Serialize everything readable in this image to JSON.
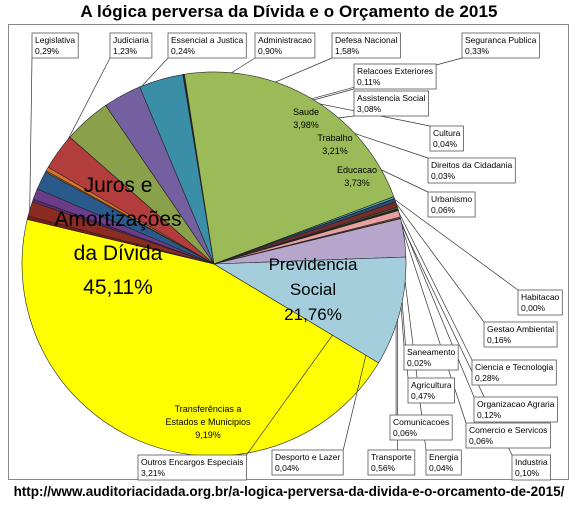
{
  "chart_data": {
    "type": "pie",
    "title": "A lógica perversa da Dívida e o Orçamento de 2015",
    "source": "http://www.auditoriacidada.org.br/a-logica-perversa-da-divida-e-o-orcamento-de-2015/",
    "slices": [
      {
        "name": "Juros e Amortizações da Dívida",
        "value": 45.11,
        "label": "45,11%",
        "color": "#ffff00"
      },
      {
        "name": "Legislativa",
        "value": 0.29,
        "label": "0,29%",
        "color": "#7f1a1a"
      },
      {
        "name": "Judiciaria",
        "value": 1.23,
        "label": "1,23%",
        "color": "#8b2b22"
      },
      {
        "name": "Essencial a Justica",
        "value": 0.24,
        "label": "0,24%",
        "color": "#5c2a6e"
      },
      {
        "name": "Administracao",
        "value": 0.9,
        "label": "0,90%",
        "color": "#6b3c8a"
      },
      {
        "name": "Defesa Nacional",
        "value": 1.58,
        "label": "1,58%",
        "color": "#2a5a8c"
      },
      {
        "name": "Relacoes Exteriores",
        "value": 0.11,
        "label": "0,11%",
        "color": "#c06a28"
      },
      {
        "name": "Seguranca Publica",
        "value": 0.33,
        "label": "0,33%",
        "color": "#d8722a"
      },
      {
        "name": "Assistencia Social",
        "value": 3.08,
        "label": "3,08%",
        "color": "#b33c3c"
      },
      {
        "name": "Saude",
        "value": 3.98,
        "label": "3,98%",
        "color": "#8aa04a"
      },
      {
        "name": "Trabalho",
        "value": 3.21,
        "label": "3,21%",
        "color": "#7460a0"
      },
      {
        "name": "Educacao",
        "value": 3.73,
        "label": "3,73%",
        "color": "#3a8ea8"
      },
      {
        "name": "Cultura",
        "value": 0.04,
        "label": "0,04%",
        "color": "#e08a40"
      },
      {
        "name": "Direitos da Cidadania",
        "value": 0.03,
        "label": "0,03%",
        "color": "#4a6fa0"
      },
      {
        "name": "Urbanismo",
        "value": 0.06,
        "label": "0,06%",
        "color": "#a04040"
      },
      {
        "name": "Previdencia Social",
        "value": 21.76,
        "label": "21,76%",
        "color": "#9bbb59"
      },
      {
        "name": "Habitacao",
        "value": 0.0,
        "label": "0,00%",
        "color": "#8064a2"
      },
      {
        "name": "Gestao Ambiental",
        "value": 0.16,
        "label": "0,16%",
        "color": "#4bacc6"
      },
      {
        "name": "Saneamento",
        "value": 0.02,
        "label": "0,02%",
        "color": "#f79646"
      },
      {
        "name": "Ciencia e Tecnologia",
        "value": 0.28,
        "label": "0,28%",
        "color": "#2c4d75"
      },
      {
        "name": "Agricultura",
        "value": 0.47,
        "label": "0,47%",
        "color": "#772c2a"
      },
      {
        "name": "Organizacao Agraria",
        "value": 0.12,
        "label": "0,12%",
        "color": "#5f7530"
      },
      {
        "name": "Comunicacoes",
        "value": 0.06,
        "label": "0,06%",
        "color": "#4d3b62"
      },
      {
        "name": "Comercio e Servicos",
        "value": 0.06,
        "label": "0,06%",
        "color": "#276a7c"
      },
      {
        "name": "Energia",
        "value": 0.04,
        "label": "0,04%",
        "color": "#b65708"
      },
      {
        "name": "Transporte",
        "value": 0.56,
        "label": "0,56%",
        "color": "#e6a0a0"
      },
      {
        "name": "Industria",
        "value": 0.1,
        "label": "0,10%",
        "color": "#c0504d"
      },
      {
        "name": "Desporto e Lazer",
        "value": 0.04,
        "label": "0,04%",
        "color": "#a9c47f"
      },
      {
        "name": "Outros Encargos Especiais",
        "value": 3.21,
        "label": "3,21%",
        "color": "#b7a6cc"
      },
      {
        "name": "Transferências a Estados e Municipios",
        "value": 9.19,
        "label": "9,19%",
        "color": "#a5cedc"
      }
    ]
  }
}
